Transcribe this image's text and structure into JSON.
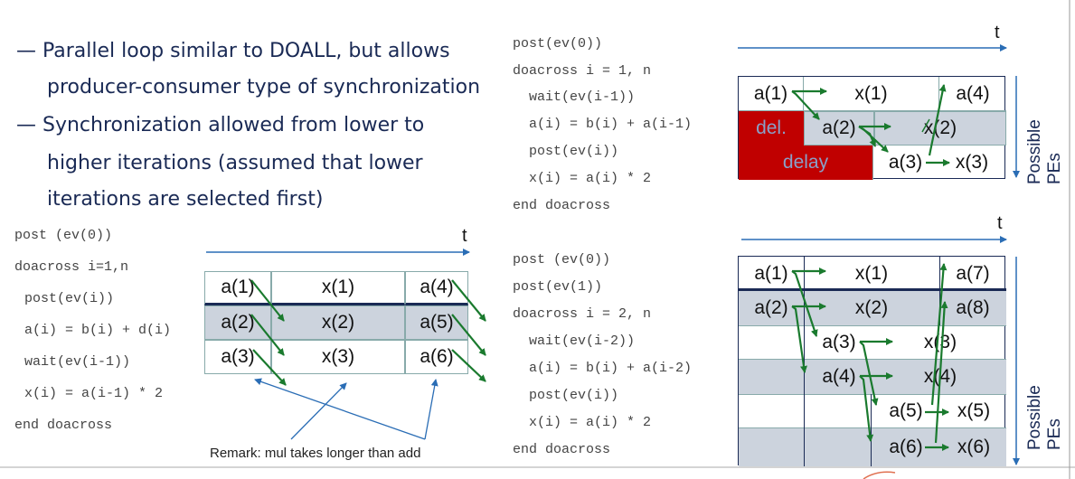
{
  "bullets": [
    "— Parallel loop similar to DOALL, but allows",
    "producer-consumer type of synchronization",
    "— Synchronization allowed from lower to",
    "higher iterations (assumed that lower",
    "iterations are selected first)"
  ],
  "code_left": [
    "post (ev(0))",
    "doacross i=1,n",
    " post(ev(i))",
    " a(i) = b(i) + d(i)",
    " wait(ev(i-1))",
    " x(i) = a(i-1) * 2",
    "end doacross"
  ],
  "code_top_right": [
    "post(ev(0))",
    "doacross i = 1, n",
    "  wait(ev(i-1))",
    "  a(i) = b(i) + a(i-1)",
    "  post(ev(i))",
    "  x(i) = a(i) * 2",
    "end doacross"
  ],
  "code_bottom_right": [
    "post (ev(0))",
    "post(ev(1))",
    "doacross i = 2, n",
    "  wait(ev(i-2))",
    "  a(i) = b(i) + a(i-2)",
    "  post(ev(i))",
    "  x(i) = a(i) * 2",
    "end doacross"
  ],
  "time_label": "t",
  "pes_label": [
    "Possible",
    "PEs"
  ],
  "remark": "Remark: mul takes longer than add",
  "table_left": {
    "rows": [
      [
        "a(1)",
        "x(1)",
        "a(4)"
      ],
      [
        "a(2)",
        "x(2)",
        "a(5)"
      ],
      [
        "a(3)",
        "x(3)",
        "a(6)"
      ]
    ]
  },
  "table_top_right": {
    "row1": [
      "a(1)",
      "x(1)",
      "a(4)"
    ],
    "row2": [
      "del.",
      "a(2)",
      "x(2)"
    ],
    "row3": [
      "delay",
      "a(3)",
      "x(3)"
    ]
  },
  "table_bottom_right": {
    "rows": [
      [
        "a(1)",
        "x(1)",
        "a(7)"
      ],
      [
        "a(2)",
        "x(2)",
        "a(8)"
      ],
      [
        "a(3)",
        "x(3)"
      ],
      [
        "a(4)",
        "x(4)"
      ],
      [
        "a(5)",
        "x(5)"
      ],
      [
        "a(6)",
        "x(6)"
      ]
    ]
  },
  "colors": {
    "arrow_green": "#1a7a2e",
    "axis_blue": "#2a6db5",
    "delay_red": "#c00000",
    "highlight": "#ccd3dd"
  }
}
